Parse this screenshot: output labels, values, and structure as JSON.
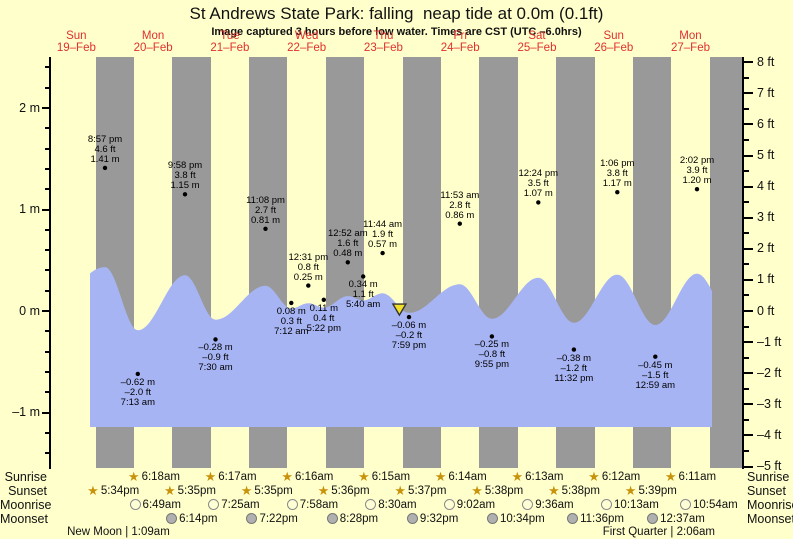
{
  "page": {
    "title": "St Andrews State Park: falling  neap tide at 0.0m (0.1ft)",
    "subtitle": "Image captured 3 hours before low water. Times are CST (UTC –6.0hrs)"
  },
  "colors": {
    "background": "#ffffcc",
    "night_band": "#999999",
    "tide_fill": "#a7b4f3",
    "day_label_red": "#e03030",
    "now_marker_fill": "#f2df2a",
    "now_marker_stroke": "#333333",
    "star_gold": "#c8930b"
  },
  "chart_data": {
    "type": "area",
    "title": "St Andrews State Park: falling  neap tide at 0.0m (0.1ft)",
    "subtitle": "Image captured 3 hours before low water. Times are CST (UTC –6.0hrs)",
    "x_axis": {
      "note": "t_min = minutes since 19-Feb 00:00",
      "days": [
        {
          "dow": "Sun",
          "date": "19–Feb"
        },
        {
          "dow": "Mon",
          "date": "20–Feb"
        },
        {
          "dow": "Tue",
          "date": "21–Feb"
        },
        {
          "dow": "Wed",
          "date": "22–Feb"
        },
        {
          "dow": "Thu",
          "date": "23–Feb"
        },
        {
          "dow": "Fri",
          "date": "24–Feb"
        },
        {
          "dow": "Sat",
          "date": "25–Feb"
        },
        {
          "dow": "Sun",
          "date": "26–Feb"
        },
        {
          "dow": "Mon",
          "date": "27–Feb"
        }
      ],
      "night_shading": "grey bands from 18:00 to 06:00 each night"
    },
    "y_axis_left": {
      "unit": "m",
      "minor_step": 0.2,
      "range": [
        -1.4,
        2.4
      ],
      "ticks": [
        {
          "value": 2,
          "label": "2 m"
        },
        {
          "value": 1,
          "label": "1 m"
        },
        {
          "value": 0,
          "label": "0 m"
        },
        {
          "value": -1,
          "label": "–1 m"
        }
      ]
    },
    "y_axis_right": {
      "unit": "ft",
      "minor_step": 0.5,
      "range": [
        -5,
        8
      ],
      "ticks": [
        {
          "value": 8,
          "label": "8 ft"
        },
        {
          "value": 7,
          "label": "7 ft"
        },
        {
          "value": 6,
          "label": "6 ft"
        },
        {
          "value": 5,
          "label": "5 ft"
        },
        {
          "value": 4,
          "label": "4 ft"
        },
        {
          "value": 3,
          "label": "3 ft"
        },
        {
          "value": 2,
          "label": "2 ft"
        },
        {
          "value": 1,
          "label": "1 ft"
        },
        {
          "value": 0,
          "label": "0 ft"
        },
        {
          "value": -1,
          "label": "–1 ft"
        },
        {
          "value": -2,
          "label": "–2 ft"
        },
        {
          "value": -3,
          "label": "–3 ft"
        },
        {
          "value": -4,
          "label": "–4 ft"
        },
        {
          "value": -5,
          "label": "–5 ft"
        }
      ]
    },
    "tide_events": [
      {
        "type": "high",
        "time": "8:57 pm",
        "ft": "4.6 ft",
        "m": "1.41 m",
        "height_m": 1.41,
        "t_min": 1257
      },
      {
        "type": "low",
        "time": "7:13 am",
        "ft": "–2.0 ft",
        "m": "–0.62 m",
        "height_m": -0.62,
        "t_min": 1873
      },
      {
        "type": "high",
        "time": "9:58 pm",
        "ft": "3.8 ft",
        "m": "1.15 m",
        "height_m": 1.15,
        "t_min": 2758
      },
      {
        "type": "low",
        "time": "7:30 am",
        "ft": "–0.9 ft",
        "m": "–0.28 m",
        "height_m": -0.28,
        "t_min": 3330
      },
      {
        "type": "high",
        "time": "11:08 pm",
        "ft": "2.7 ft",
        "m": "0.81 m",
        "height_m": 0.81,
        "t_min": 4268
      },
      {
        "type": "low",
        "time": "7:12 am",
        "ft": "0.3 ft",
        "m": "0.08 m",
        "height_m": 0.08,
        "t_min": 4752
      },
      {
        "type": "high",
        "time": "12:31 pm",
        "ft": "0.8 ft",
        "m": "0.25 m",
        "height_m": 0.25,
        "t_min": 5071
      },
      {
        "type": "low",
        "time": "5:22 pm",
        "ft": "0.4 ft",
        "m": "0.11 m",
        "height_m": 0.11,
        "t_min": 5362
      },
      {
        "type": "high",
        "time": "12:52 am",
        "ft": "1.6 ft",
        "m": "0.48 m",
        "height_m": 0.48,
        "t_min": 5812
      },
      {
        "type": "low",
        "time": "5:40 am",
        "ft": "1.1 ft",
        "m": "0.34 m",
        "height_m": 0.34,
        "t_min": 6100
      },
      {
        "type": "high",
        "time": "11:44 am",
        "ft": "1.9 ft",
        "m": "0.57 m",
        "height_m": 0.57,
        "t_min": 6464
      },
      {
        "type": "low",
        "time": "7:59 pm",
        "ft": "–0.2 ft",
        "m": "–0.06 m",
        "height_m": -0.06,
        "t_min": 6959
      },
      {
        "type": "high",
        "time": "11:53 am",
        "ft": "2.8 ft",
        "m": "0.86 m",
        "height_m": 0.86,
        "t_min": 7913
      },
      {
        "type": "low",
        "time": "9:55 pm",
        "ft": "–0.8 ft",
        "m": "–0.25 m",
        "height_m": -0.25,
        "t_min": 8515
      },
      {
        "type": "high",
        "time": "12:24 pm",
        "ft": "3.5 ft",
        "m": "1.07 m",
        "height_m": 1.07,
        "t_min": 9384
      },
      {
        "type": "low",
        "time": "11:32 pm",
        "ft": "–1.2 ft",
        "m": "–0.38 m",
        "height_m": -0.38,
        "t_min": 10052
      },
      {
        "type": "high",
        "time": "1:06 pm",
        "ft": "3.8 ft",
        "m": "1.17 m",
        "height_m": 1.17,
        "t_min": 10866
      },
      {
        "type": "low",
        "time": "12:59 am",
        "ft": "–1.5 ft",
        "m": "–0.45 m",
        "height_m": -0.45,
        "t_min": 11579
      },
      {
        "type": "high",
        "time": "2:02 pm",
        "ft": "3.9 ft",
        "m": "1.20 m",
        "height_m": 1.2,
        "t_min": 12362
      }
    ],
    "now_marker": {
      "t_min": 6779,
      "shape": "triangle-down"
    },
    "curve": {
      "interpolation": "cosine between consecutive extremes",
      "estimated_boundary_extremes": [
        {
          "t_min": -120,
          "height_m": -0.6
        },
        {
          "t_min": 13080,
          "height_m": -0.5
        }
      ]
    }
  },
  "astro": {
    "rows": [
      {
        "label": "Sunrise",
        "icon": "star",
        "events": [
          {
            "time": "6:18am",
            "t_min": 1818
          },
          {
            "time": "6:17am",
            "t_min": 3257
          },
          {
            "time": "6:16am",
            "t_min": 4696
          },
          {
            "time": "6:15am",
            "t_min": 6135
          },
          {
            "time": "6:14am",
            "t_min": 7574
          },
          {
            "time": "6:13am",
            "t_min": 9013
          },
          {
            "time": "6:12am",
            "t_min": 10452
          },
          {
            "time": "6:11am",
            "t_min": 11891
          }
        ]
      },
      {
        "label": "Sunset",
        "icon": "star",
        "events": [
          {
            "time": "5:34pm",
            "t_min": 1054
          },
          {
            "time": "5:35pm",
            "t_min": 2495
          },
          {
            "time": "5:35pm",
            "t_min": 3935
          },
          {
            "time": "5:36pm",
            "t_min": 5376
          },
          {
            "time": "5:37pm",
            "t_min": 6817
          },
          {
            "time": "5:38pm",
            "t_min": 8258
          },
          {
            "time": "5:38pm",
            "t_min": 9698
          },
          {
            "time": "5:39pm",
            "t_min": 11139
          }
        ]
      },
      {
        "label": "Moonrise",
        "icon": "moon-light",
        "events": [
          {
            "time": "6:49am",
            "t_min": 1849
          },
          {
            "time": "7:25am",
            "t_min": 3325
          },
          {
            "time": "7:58am",
            "t_min": 4798
          },
          {
            "time": "8:30am",
            "t_min": 6270
          },
          {
            "time": "9:02am",
            "t_min": 7742
          },
          {
            "time": "9:36am",
            "t_min": 9216
          },
          {
            "time": "10:13am",
            "t_min": 10693
          },
          {
            "time": "10:54am",
            "t_min": 12174
          }
        ]
      },
      {
        "label": "Moonset",
        "icon": "moon-dark",
        "events": [
          {
            "time": "6:14pm",
            "t_min": 2534
          },
          {
            "time": "7:22pm",
            "t_min": 4042
          },
          {
            "time": "8:28pm",
            "t_min": 5548
          },
          {
            "time": "9:32pm",
            "t_min": 7052
          },
          {
            "time": "10:34pm",
            "t_min": 8554
          },
          {
            "time": "11:36pm",
            "t_min": 10056
          },
          {
            "time": "12:37am",
            "t_min": 11557
          }
        ]
      }
    ],
    "phases": [
      {
        "label": "New Moon | 1:09am",
        "t_min": 1509
      },
      {
        "label": "First Quarter | 2:06am",
        "t_min": 11646
      }
    ]
  }
}
